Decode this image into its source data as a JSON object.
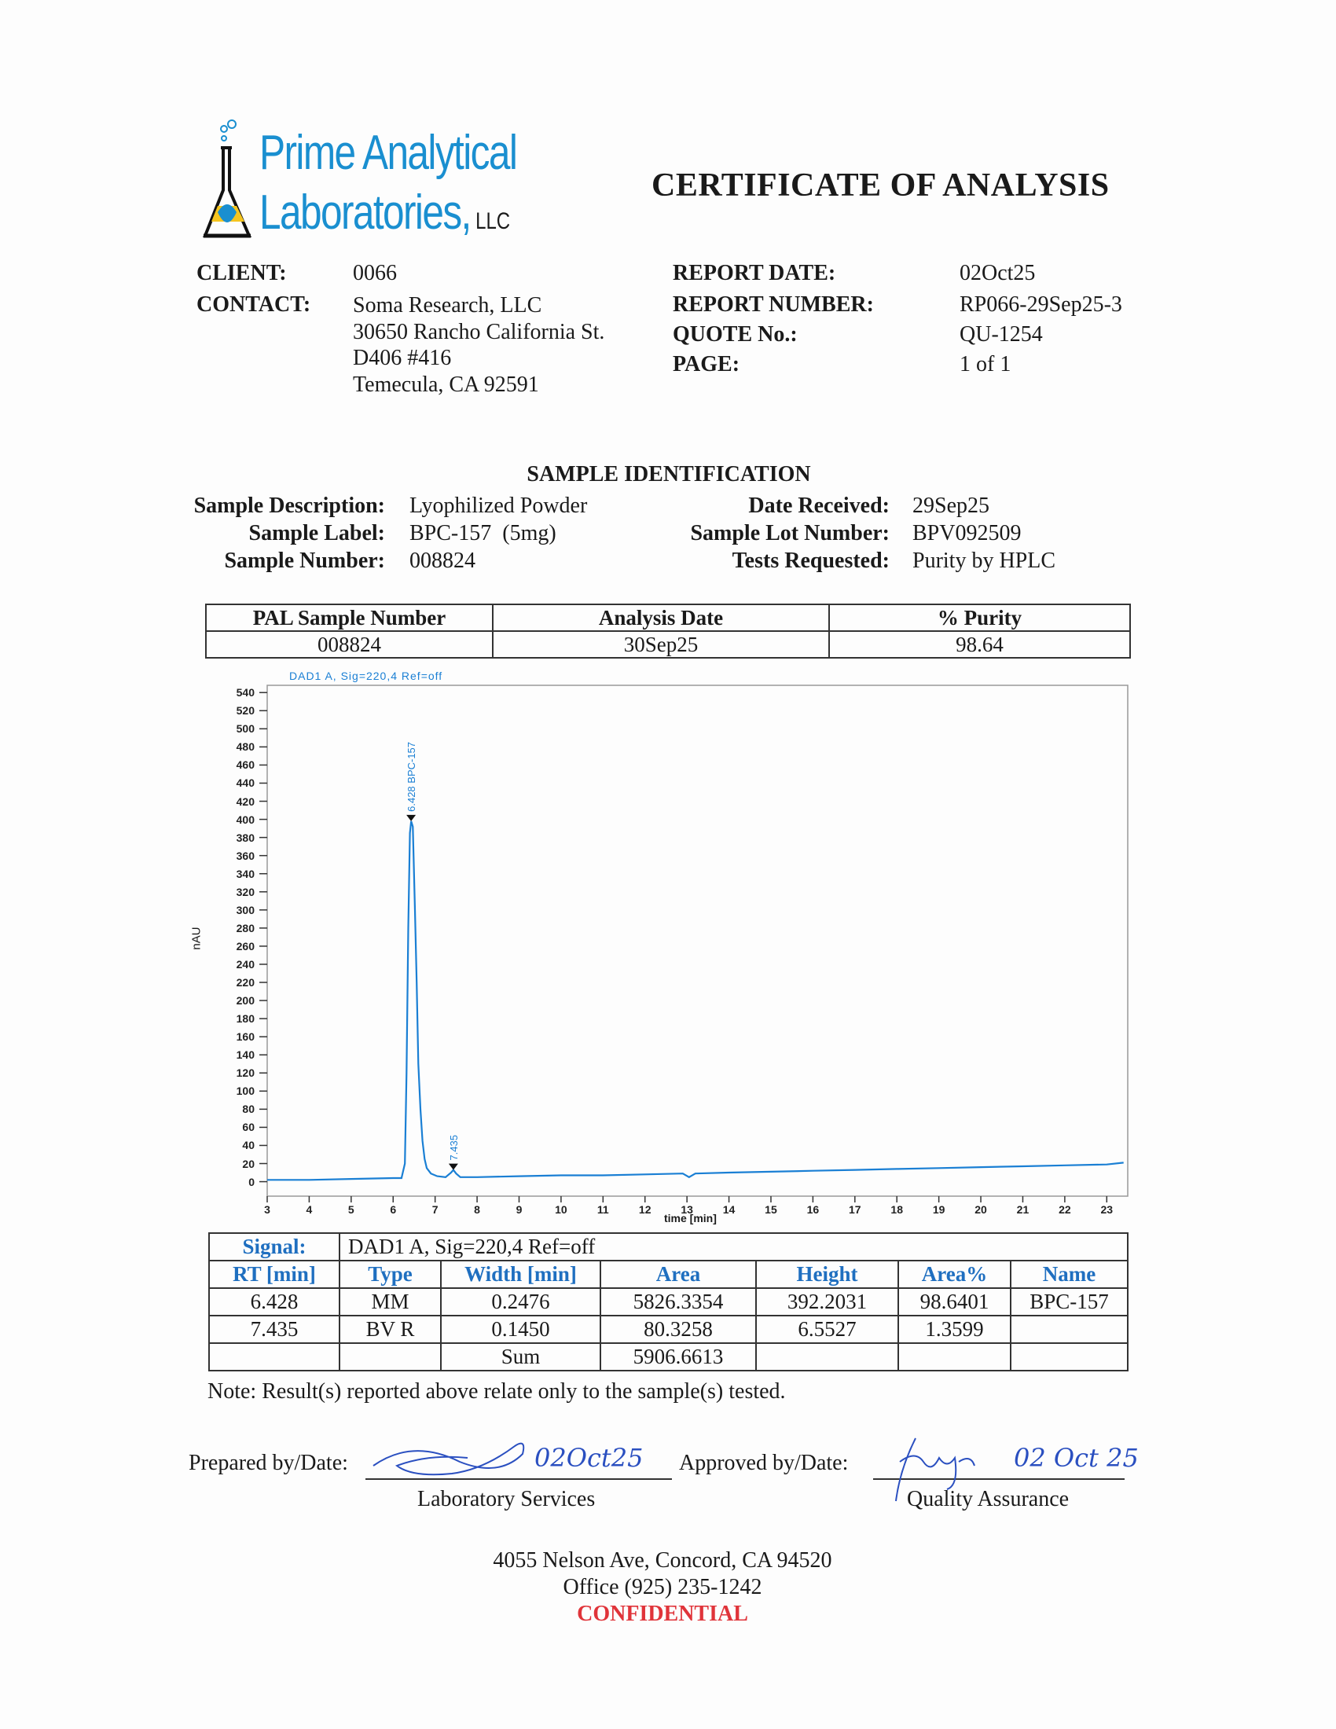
{
  "logo": {
    "line1": "Prime Analytical",
    "line2": "Laboratories,",
    "suffix": "LLC"
  },
  "title": "CERTIFICATE OF ANALYSIS",
  "client": {
    "label": "CLIENT:",
    "value": "0066"
  },
  "contact": {
    "label": "CONTACT:",
    "lines": [
      "Soma Research, LLC",
      "30650 Rancho California St.",
      "D406 #416",
      "Temecula, CA 92591"
    ]
  },
  "report": {
    "date_label": "REPORT DATE:",
    "date": "02Oct25",
    "number_label": "REPORT NUMBER:",
    "number": "RP066-29Sep25-3",
    "quote_label": "QUOTE No.:",
    "quote": "QU-1254",
    "page_label": "PAGE:",
    "page": "1 of 1"
  },
  "sample": {
    "heading": "SAMPLE IDENTIFICATION",
    "description_label": "Sample Description:",
    "description": "Lyophilized Powder",
    "label_label": "Sample Label:",
    "label": "BPC-157  (5mg)",
    "number_label": "Sample Number:",
    "number": "008824",
    "received_label": "Date Received:",
    "received": "29Sep25",
    "lot_label": "Sample Lot Number:",
    "lot": "BPV092509",
    "tests_label": "Tests Requested:",
    "tests": "Purity by HPLC"
  },
  "summary_table": {
    "headers": [
      "PAL Sample Number",
      "Analysis Date",
      "% Purity"
    ],
    "row": [
      "008824",
      "30Sep25",
      "98.64"
    ]
  },
  "chart_data": {
    "type": "line",
    "title": "DAD1 A, Sig=220,4 Ref=off",
    "xlabel": "time [min]",
    "ylabel": "nAU",
    "xlim": [
      3,
      23.5
    ],
    "ylim": [
      -16,
      548
    ],
    "xticks": [
      3,
      4,
      5,
      6,
      7,
      8,
      9,
      10,
      11,
      12,
      13,
      14,
      15,
      16,
      17,
      18,
      19,
      20,
      21,
      22,
      23
    ],
    "yticks": [
      0,
      20,
      40,
      60,
      80,
      100,
      120,
      140,
      160,
      180,
      200,
      220,
      240,
      260,
      280,
      300,
      320,
      340,
      360,
      380,
      400,
      420,
      440,
      460,
      480,
      500,
      520,
      540
    ],
    "grid": false,
    "color": "#1a7fd4",
    "series": [
      {
        "x": [
          3,
          4,
          5,
          6,
          6.2,
          6.28,
          6.32,
          6.36,
          6.4,
          6.43,
          6.47,
          6.52,
          6.56,
          6.6,
          6.65,
          6.7,
          6.75,
          6.8,
          6.9,
          7.05,
          7.25,
          7.38,
          7.435,
          7.5,
          7.6,
          8,
          9,
          10,
          11,
          12,
          12.9,
          13.05,
          13.2,
          14,
          15,
          16,
          17,
          18,
          19,
          20,
          21,
          22,
          23,
          23.4
        ],
        "y": [
          2,
          2,
          3,
          4,
          4,
          20,
          120,
          280,
          385,
          398,
          392,
          300,
          220,
          130,
          80,
          45,
          25,
          15,
          9,
          6,
          5,
          10,
          13,
          9,
          5,
          5,
          6,
          7,
          7,
          8,
          9,
          5,
          9,
          10,
          11,
          12,
          13,
          14,
          15,
          16,
          17,
          18,
          19,
          21
        ]
      }
    ],
    "peaks": [
      {
        "x": 6.428,
        "y": 398,
        "label": "6.428 BPC-157"
      },
      {
        "x": 7.435,
        "y": 13,
        "label": "7.435"
      }
    ]
  },
  "results": {
    "signal_label": "Signal:",
    "signal": "DAD1 A, Sig=220,4 Ref=off",
    "headers": [
      "RT [min]",
      "Type",
      "Width [min]",
      "Area",
      "Height",
      "Area%",
      "Name"
    ],
    "rows": [
      [
        "6.428",
        "MM",
        "0.2476",
        "5826.3354",
        "392.2031",
        "98.6401",
        "BPC-157"
      ],
      [
        "7.435",
        "BV R",
        "0.1450",
        "80.3258",
        "6.5527",
        "1.3599",
        ""
      ],
      [
        "",
        "",
        "Sum",
        "5906.6613",
        "",
        "",
        ""
      ]
    ]
  },
  "note": "Note: Result(s) reported above relate only to the sample(s) tested.",
  "signatures": {
    "prepared_label": "Prepared by/Date:",
    "prepared_date": "02Oct25",
    "prepared_dept": "Laboratory Services",
    "approved_label": "Approved by/Date:",
    "approved_date": "02 Oct 25",
    "approved_dept": "Quality Assurance"
  },
  "footer": {
    "address": "4055 Nelson Ave, Concord, CA 94520",
    "phone": "Office (925) 235-1242",
    "confidential": "CONFIDENTIAL",
    "confidential_color": "#e0343a"
  }
}
